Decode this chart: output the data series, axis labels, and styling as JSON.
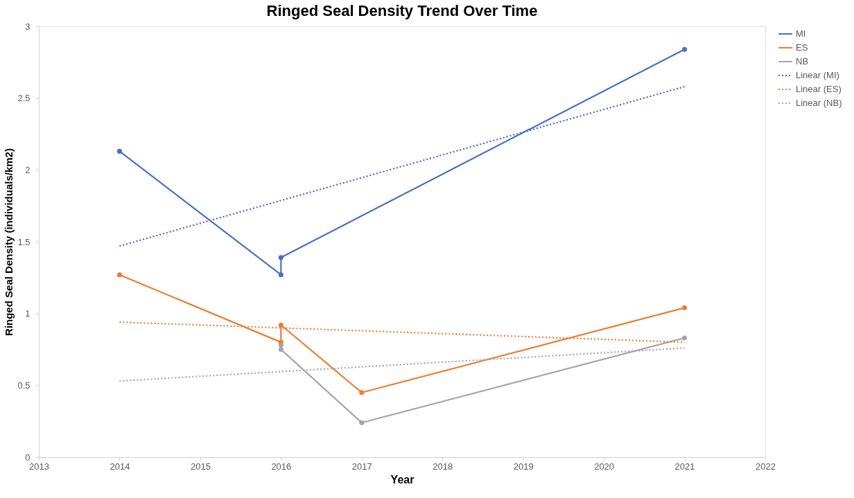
{
  "chart_data": {
    "type": "line",
    "title": "Ringed Seal Density Trend Over Time",
    "xlabel": "Year",
    "ylabel": "Ringed Seal Density (individuals/km2)",
    "xlim": [
      2013,
      2022
    ],
    "xticks": [
      2013,
      2014,
      2015,
      2016,
      2017,
      2018,
      2019,
      2020,
      2021,
      2022
    ],
    "ylim": [
      0,
      3
    ],
    "yticks": [
      0,
      0.5,
      1,
      1.5,
      2,
      2.5,
      3
    ],
    "grid": false,
    "legend": "right",
    "series": [
      {
        "name": "MI",
        "color": "#4472c4",
        "marker": "circle",
        "line_style": "solid",
        "x": [
          2014,
          2016,
          2016,
          2021
        ],
        "values": [
          2.13,
          1.27,
          1.39,
          2.84
        ]
      },
      {
        "name": "ES",
        "color": "#ed7d31",
        "marker": "circle",
        "line_style": "solid",
        "x": [
          2014,
          2016,
          2016,
          2017,
          2021
        ],
        "values": [
          1.27,
          0.8,
          0.92,
          0.45,
          1.04
        ]
      },
      {
        "name": "NB",
        "color": "#a5a5a5",
        "marker": "circle",
        "line_style": "solid",
        "x": [
          2016,
          2016,
          2017,
          2021
        ],
        "values": [
          0.78,
          0.75,
          0.24,
          0.83
        ]
      },
      {
        "name": "Linear (MI)",
        "color": "#4f5fd0",
        "marker": "none",
        "line_style": "dotted",
        "x": [
          2014,
          2021
        ],
        "values": [
          1.47,
          2.58
        ]
      },
      {
        "name": "Linear (ES)",
        "color": "#ed7d31",
        "marker": "none",
        "line_style": "dotted",
        "x": [
          2014,
          2021
        ],
        "values": [
          0.94,
          0.8
        ]
      },
      {
        "name": "Linear (NB)",
        "color": "#a5a5a5",
        "marker": "none",
        "line_style": "dotted",
        "x": [
          2014,
          2021
        ],
        "values": [
          0.53,
          0.76
        ]
      }
    ]
  }
}
